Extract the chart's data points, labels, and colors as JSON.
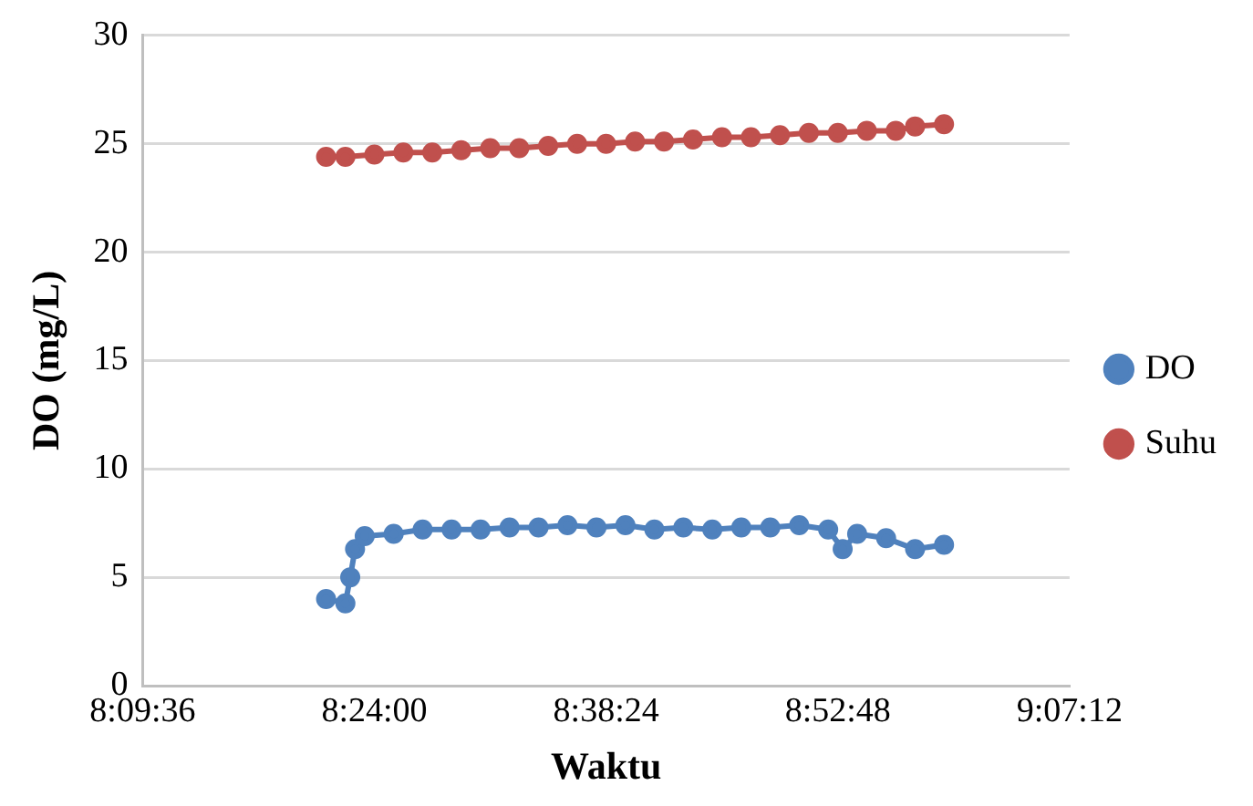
{
  "chart_data": {
    "type": "line",
    "xlabel": "Waktu",
    "ylabel": "DO (mg/L)",
    "xlim": [
      8.16,
      9.12
    ],
    "xticks": [
      {
        "value": 8.16,
        "label": "8:09:36"
      },
      {
        "value": 8.4,
        "label": "8:24:00"
      },
      {
        "value": 8.64,
        "label": "8:38:24"
      },
      {
        "value": 8.88,
        "label": "8:52:48"
      },
      {
        "value": 9.12,
        "label": "9:07:12"
      }
    ],
    "ylim": [
      0,
      30
    ],
    "yticks": [
      0,
      5,
      10,
      15,
      20,
      25,
      30
    ],
    "grid": "y",
    "legend": "right",
    "marker": "circle",
    "line_style": "solid",
    "series": [
      {
        "name": "DO",
        "color": "#4f81bd",
        "x": [
          8.35,
          8.37,
          8.375,
          8.38,
          8.39,
          8.42,
          8.45,
          8.48,
          8.51,
          8.54,
          8.57,
          8.6,
          8.63,
          8.66,
          8.69,
          8.72,
          8.75,
          8.78,
          8.81,
          8.84,
          8.87,
          8.885,
          8.9,
          8.93,
          8.96,
          8.99
        ],
        "values": [
          4.0,
          3.8,
          5.0,
          6.3,
          6.9,
          7.0,
          7.2,
          7.2,
          7.2,
          7.3,
          7.3,
          7.4,
          7.3,
          7.4,
          7.2,
          7.3,
          7.2,
          7.3,
          7.3,
          7.4,
          7.2,
          6.3,
          7.0,
          6.8,
          6.3,
          6.5
        ]
      },
      {
        "name": "Suhu",
        "color": "#c0504d",
        "x": [
          8.35,
          8.37,
          8.4,
          8.43,
          8.46,
          8.49,
          8.52,
          8.55,
          8.58,
          8.61,
          8.64,
          8.67,
          8.7,
          8.73,
          8.76,
          8.79,
          8.82,
          8.85,
          8.88,
          8.91,
          8.94,
          8.96,
          8.99
        ],
        "values": [
          24.4,
          24.4,
          24.5,
          24.6,
          24.6,
          24.7,
          24.8,
          24.8,
          24.9,
          25.0,
          25.0,
          25.1,
          25.1,
          25.2,
          25.3,
          25.3,
          25.4,
          25.5,
          25.5,
          25.6,
          25.6,
          25.8,
          25.9
        ]
      }
    ]
  }
}
